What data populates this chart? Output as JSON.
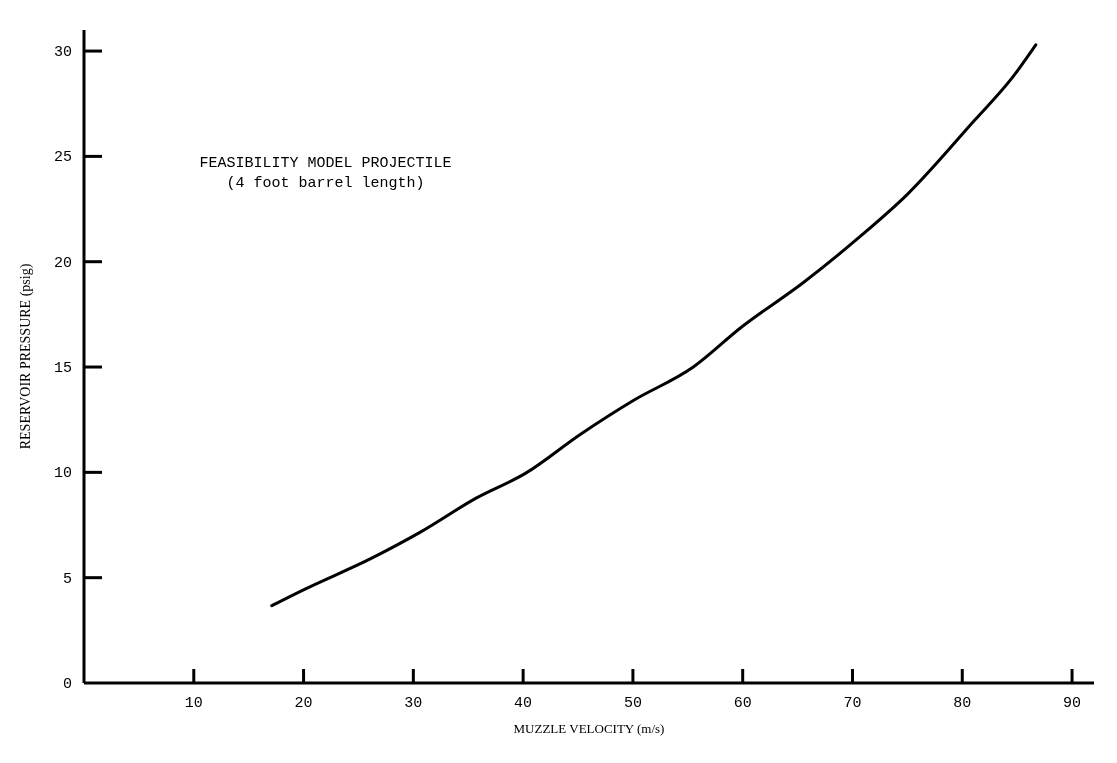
{
  "chart_data": {
    "type": "line",
    "xlabel": "MUZZLE VELOCITY (m/s)",
    "ylabel": "RESERVOIR PRESSURE (psig)",
    "annotations": [
      "FEASIBILITY MODEL PROJECTILE\n(4 foot barrel length)"
    ],
    "xlim": [
      0,
      92
    ],
    "ylim": [
      0,
      31
    ],
    "xticks": [
      10,
      20,
      30,
      40,
      50,
      60,
      70,
      80,
      90
    ],
    "yticks": [
      0,
      5,
      10,
      15,
      20,
      25,
      30
    ],
    "grid": false,
    "marker": "none",
    "line_style": "solid",
    "series": [
      {
        "color": "#000000",
        "x": [
          17.1,
          19.9,
          26.3,
          30.6,
          35.8,
          40.2,
          45.2,
          50,
          55.5,
          59.9,
          65.5,
          70.7,
          75,
          81.1,
          84.5,
          86.7
        ],
        "values": [
          3.67,
          4.4,
          5.95,
          7.15,
          8.8,
          9.95,
          11.8,
          13.4,
          15,
          16.9,
          19,
          21.2,
          23.2,
          26.7,
          28.7,
          30.3
        ]
      }
    ]
  }
}
